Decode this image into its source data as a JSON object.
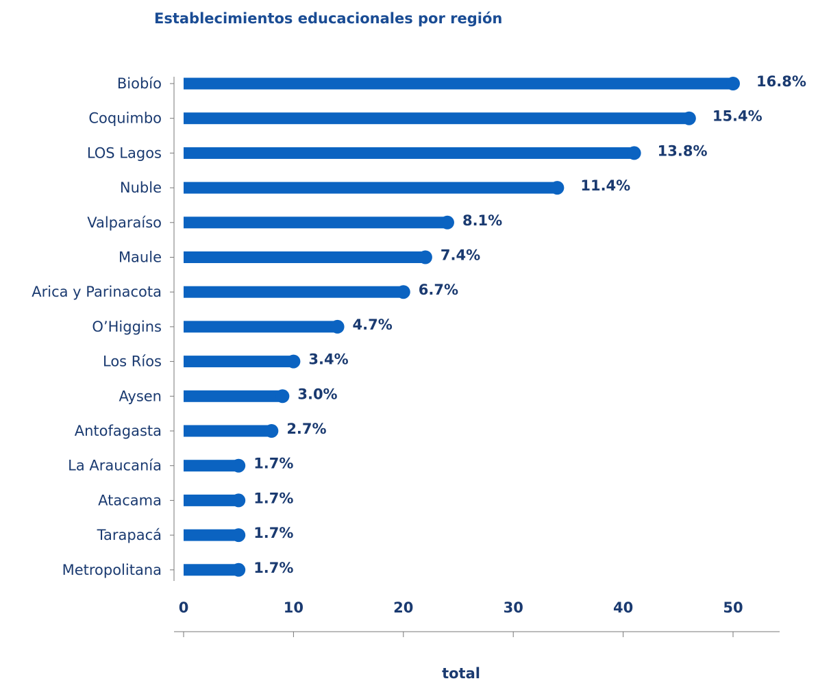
{
  "chart_data": {
    "type": "bar",
    "orientation": "horizontal",
    "title": "Establecimientos educacionales por región",
    "x_label": "total",
    "categories": [
      "Biobío",
      "Coquimbo",
      "LOS Lagos",
      "Nuble",
      "Valparaíso",
      "Maule",
      "Arica y Parinacota",
      "O’Higgins",
      "Los Ríos",
      "Aysen",
      "Antofagasta",
      "La Araucanía",
      "Atacama",
      "Tarapacá",
      "Metropolitana"
    ],
    "values": [
      50,
      46,
      41,
      34,
      24,
      22,
      20,
      14,
      10,
      9,
      8,
      5,
      5,
      5,
      5
    ],
    "share_labels": [
      "16.8%",
      "15.4%",
      "13.8%",
      "11.4%",
      "8.1%",
      "7.4%",
      "6.7%",
      "4.7%",
      "3.4%",
      "3.0%",
      "2.7%",
      "1.7%",
      "1.7%",
      "1.7%",
      "1.7%"
    ],
    "color": "#0b63c1",
    "xlim": [
      0,
      54
    ],
    "xticks": [
      0,
      10,
      20,
      30,
      40,
      50
    ]
  }
}
